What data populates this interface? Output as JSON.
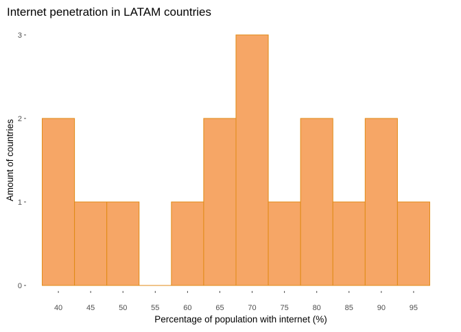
{
  "chart_data": {
    "type": "bar",
    "title": "Internet penetration in LATAM countries",
    "xlabel": "Percentage of population with internet (%)",
    "ylabel": "Amount of countries",
    "bin_width": 5,
    "bins": [
      {
        "center": 40,
        "count": 2
      },
      {
        "center": 45,
        "count": 1
      },
      {
        "center": 50,
        "count": 1
      },
      {
        "center": 55,
        "count": 0
      },
      {
        "center": 60,
        "count": 1
      },
      {
        "center": 65,
        "count": 2
      },
      {
        "center": 70,
        "count": 3
      },
      {
        "center": 75,
        "count": 1
      },
      {
        "center": 80,
        "count": 2
      },
      {
        "center": 85,
        "count": 1
      },
      {
        "center": 90,
        "count": 2
      },
      {
        "center": 95,
        "count": 1
      }
    ],
    "x_ticks": [
      40,
      45,
      50,
      55,
      60,
      65,
      70,
      75,
      80,
      85,
      90,
      95
    ],
    "y_ticks": [
      0,
      1,
      2,
      3
    ],
    "xlim": [
      35.0,
      100.0
    ],
    "ylim": [
      0,
      3
    ],
    "grid": false,
    "legend": "none",
    "colors": {
      "bar_fill": "#f6a666",
      "bar_stroke": "#e08a14"
    }
  }
}
